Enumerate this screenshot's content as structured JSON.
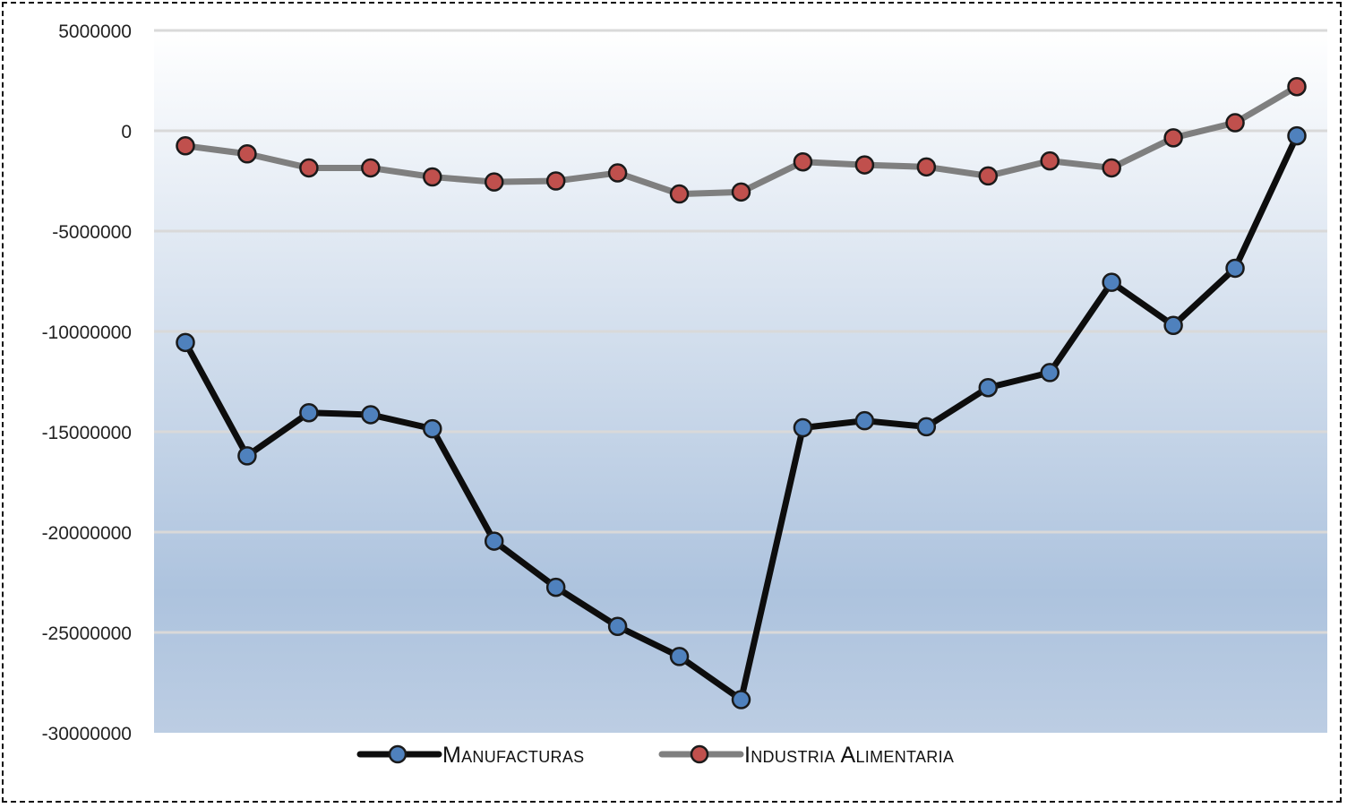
{
  "chart_data": {
    "type": "line",
    "title": "",
    "xlabel": "",
    "ylabel": "",
    "ylim": [
      -30000000,
      5000000
    ],
    "yticks": [
      5000000,
      0,
      -5000000,
      -10000000,
      -15000000,
      -20000000,
      -25000000,
      -30000000
    ],
    "grid": true,
    "legend_position": "bottom",
    "point_count": 19,
    "series": [
      {
        "name": "Manufacturas",
        "line_color": "#0d0d0d",
        "marker_color": "#4f81bd",
        "values": [
          -10550000,
          -16200000,
          -14050000,
          -14150000,
          -14850000,
          -20450000,
          -22750000,
          -24700000,
          -26200000,
          -28350000,
          -14800000,
          -14450000,
          -14750000,
          -12800000,
          -12050000,
          -7550000,
          -9700000,
          -6850000,
          -250000
        ]
      },
      {
        "name": "Industria Alimentaria",
        "line_color": "#7f7f7f",
        "marker_color": "#c0504d",
        "values": [
          -750000,
          -1150000,
          -1850000,
          -1850000,
          -2300000,
          -2550000,
          -2500000,
          -2100000,
          -3150000,
          -3050000,
          -1550000,
          -1700000,
          -1800000,
          -2250000,
          -1500000,
          -1850000,
          -350000,
          400000,
          2200000
        ]
      }
    ]
  }
}
